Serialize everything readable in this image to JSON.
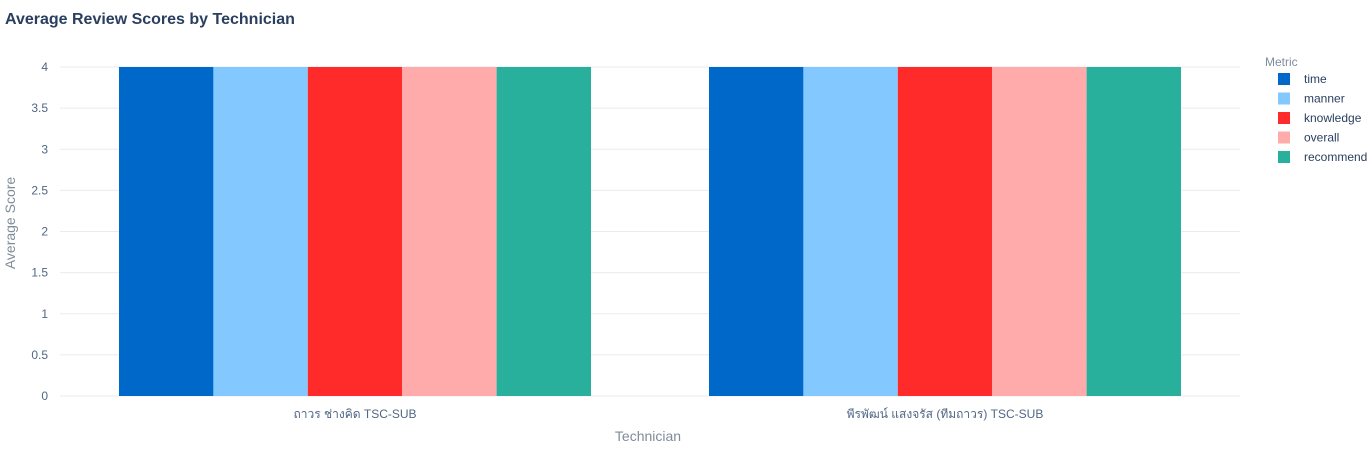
{
  "chart_data": {
    "type": "bar",
    "title": "Average Review Scores by Technician",
    "xlabel": "Technician",
    "ylabel": "Average Score",
    "categories": [
      "ถาวร ช่างคิด TSC-SUB",
      "พีรพัฒน์ แสงจรัส (ทีมถาวร) TSC-SUB"
    ],
    "ylim": [
      0,
      4
    ],
    "yticks": [
      "0",
      "0.5",
      "1",
      "1.5",
      "2",
      "2.5",
      "3",
      "3.5",
      "4"
    ],
    "grid": true,
    "legend": {
      "title": "Metric",
      "placement": "right"
    },
    "series": [
      {
        "name": "time",
        "values": [
          4,
          4
        ],
        "color": "#0068c9"
      },
      {
        "name": "manner",
        "values": [
          4,
          4
        ],
        "color": "#83c9ff"
      },
      {
        "name": "knowledge",
        "values": [
          4,
          4
        ],
        "color": "#ff2b2b"
      },
      {
        "name": "overall",
        "values": [
          4,
          4
        ],
        "color": "#ffabab"
      },
      {
        "name": "recommend",
        "values": [
          4,
          4
        ],
        "color": "#29b09d"
      }
    ]
  }
}
